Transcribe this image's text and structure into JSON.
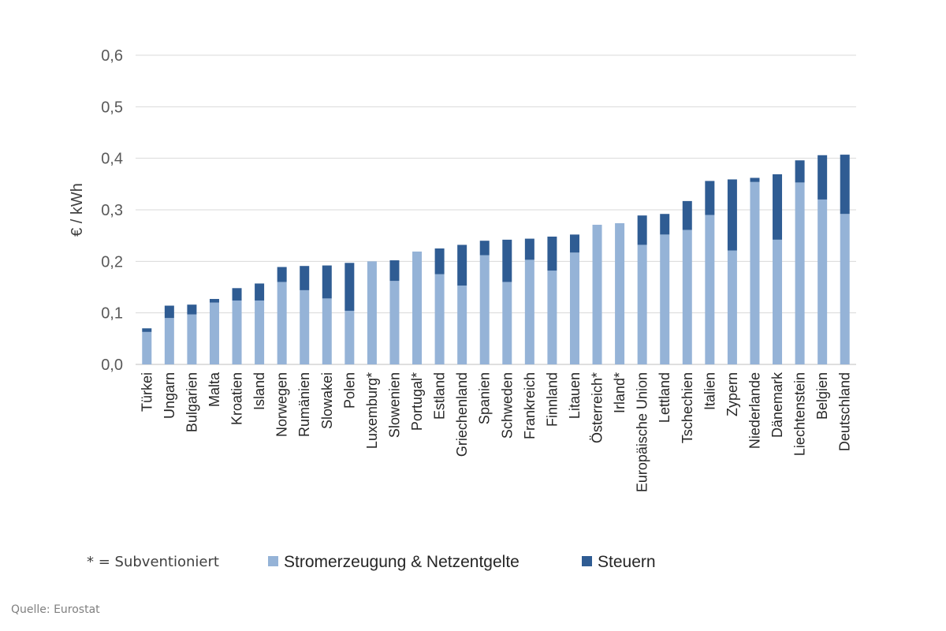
{
  "chart_data": {
    "type": "bar",
    "stacked": true,
    "ylabel": "€ / kWh",
    "ylim": [
      0,
      0.6
    ],
    "yticks": [
      "0,0",
      "0,1",
      "0,2",
      "0,3",
      "0,4",
      "0,5",
      "0,6"
    ],
    "grid": true,
    "legend_position": "bottom",
    "categories": [
      "Türkei",
      "Ungarn",
      "Bulgarien",
      "Malta",
      "Kroatien",
      "Island",
      "Norwegen",
      "Rumänien",
      "Slowakei",
      "Polen",
      "Luxemburg*",
      "Slowenien",
      "Portugal*",
      "Estland",
      "Griechenland",
      "Spanien",
      "Schweden",
      "Frankreich",
      "Finnland",
      "Litauen",
      "Österreich*",
      "Irland*",
      "Europäische Union",
      "Lettland",
      "Tschechien",
      "Italien",
      "Zypern",
      "Niederlande",
      "Dänemark",
      "Liechtenstein",
      "Belgien",
      "Deutschland"
    ],
    "series": [
      {
        "name": "Stromerzeugung & Netzentgelte",
        "color": "#95b3d7",
        "values": [
          0.063,
          0.09,
          0.097,
          0.12,
          0.124,
          0.124,
          0.16,
          0.144,
          0.128,
          0.104,
          0.2,
          0.162,
          0.219,
          0.175,
          0.153,
          0.212,
          0.16,
          0.203,
          0.182,
          0.217,
          0.271,
          0.274,
          0.232,
          0.252,
          0.261,
          0.29,
          0.221,
          0.354,
          0.242,
          0.353,
          0.32,
          0.292
        ]
      },
      {
        "name": "Steuern",
        "color": "#2f5c93",
        "values": [
          0.007,
          0.024,
          0.019,
          0.007,
          0.024,
          0.033,
          0.029,
          0.047,
          0.064,
          0.093,
          0.0,
          0.04,
          0.0,
          0.05,
          0.079,
          0.028,
          0.082,
          0.041,
          0.066,
          0.035,
          0.0,
          0.0,
          0.057,
          0.04,
          0.056,
          0.066,
          0.138,
          0.008,
          0.127,
          0.043,
          0.086,
          0.115
        ]
      }
    ]
  },
  "footnote": "* = Subventioniert",
  "source": "Quelle: Eurostat"
}
